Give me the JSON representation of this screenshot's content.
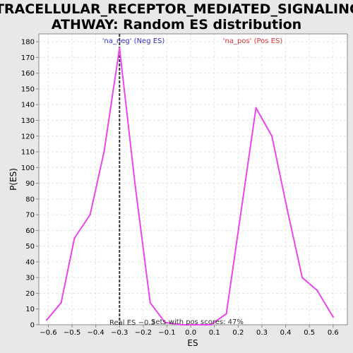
{
  "chart_data": {
    "type": "line",
    "title_line1": "INTRACELLULAR_RECEPTOR_MEDIATED_SIGNALING_P",
    "title_line2": "ATHWAY: Random ES distribution",
    "xlabel": "ES",
    "ylabel": "P(ES)",
    "xlim": [
      -0.64,
      0.66
    ],
    "ylim": [
      0,
      185
    ],
    "x_ticks": [
      -0.6,
      -0.5,
      -0.4,
      -0.3,
      -0.2,
      -0.1,
      0.0,
      0.1,
      0.2,
      0.3,
      0.4,
      0.5,
      0.6
    ],
    "x_tick_labels": [
      "−0.6",
      "−0.5",
      "−0.4",
      "−0.3",
      "−0.2",
      "−0.1",
      "0.0",
      "0.1",
      "0.2",
      "0.3",
      "0.4",
      "0.5",
      "0.6"
    ],
    "y_ticks": [
      0,
      10,
      20,
      30,
      40,
      50,
      60,
      70,
      80,
      90,
      100,
      110,
      120,
      130,
      140,
      150,
      160,
      170,
      180
    ],
    "y_tick_labels": [
      "0",
      "10",
      "20",
      "30",
      "40",
      "50",
      "60",
      "70",
      "80",
      "90",
      "100",
      "110",
      "120",
      "130",
      "140",
      "150",
      "160",
      "170",
      "180"
    ],
    "grid": true,
    "series": [
      {
        "color": "#ee44ee",
        "x": [
          -0.607,
          -0.546,
          -0.49,
          -0.424,
          -0.365,
          -0.3,
          -0.235,
          -0.171,
          -0.108,
          -0.04,
          0.018,
          0.085,
          0.15,
          0.275,
          0.342,
          0.407,
          0.47,
          0.532,
          0.6
        ],
        "y": [
          3,
          14,
          55,
          70,
          110,
          176,
          90,
          14,
          1.5,
          0,
          0,
          0,
          7,
          138,
          120,
          73,
          30,
          22,
          5
        ]
      }
    ],
    "legend": {
      "neg_label": "'na_neg' (Neg ES)",
      "neg_color": "#3333cc",
      "pos_label": "'na_pos' (Pos ES)",
      "pos_color": "#dd3333",
      "placement": "top"
    },
    "reference_line": {
      "x": -0.3,
      "label": "Real ES −0.3"
    },
    "annotation": "Sets with pos scores: 47%"
  }
}
